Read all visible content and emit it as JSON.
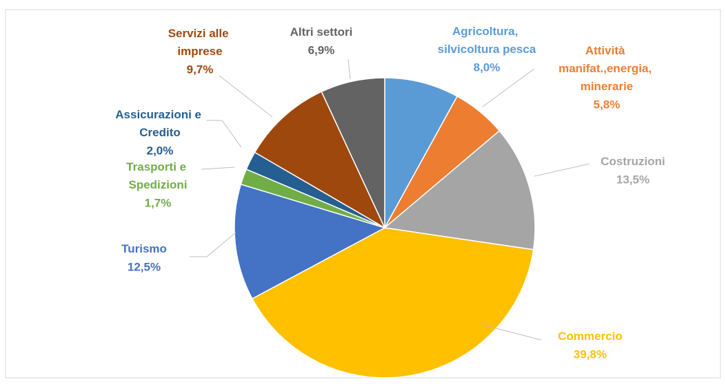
{
  "chart_data": {
    "type": "pie",
    "categories": [
      "Agricoltura,\nsilvicoltura pesca",
      "Attività\nmanifat.,energia,\nminerarie",
      "Costruzioni",
      "Commercio",
      "Turismo",
      "Trasporti e\nSpedizioni",
      "Assicurazioni e\nCredito",
      "Servizi alle\nimprese",
      "Altri settori"
    ],
    "values": [
      8.0,
      5.8,
      13.5,
      39.8,
      12.5,
      1.7,
      2.0,
      9.7,
      6.9
    ],
    "value_labels": [
      "8,0%",
      "5,8%",
      "13,5%",
      "39,8%",
      "12,5%",
      "1,7%",
      "2,0%",
      "9,7%",
      "6,9%"
    ],
    "colors": [
      "#5b9bd5",
      "#ed7d31",
      "#a5a5a5",
      "#ffc000",
      "#4472c4",
      "#70ad47",
      "#255e91",
      "#9e480e",
      "#636363"
    ]
  }
}
